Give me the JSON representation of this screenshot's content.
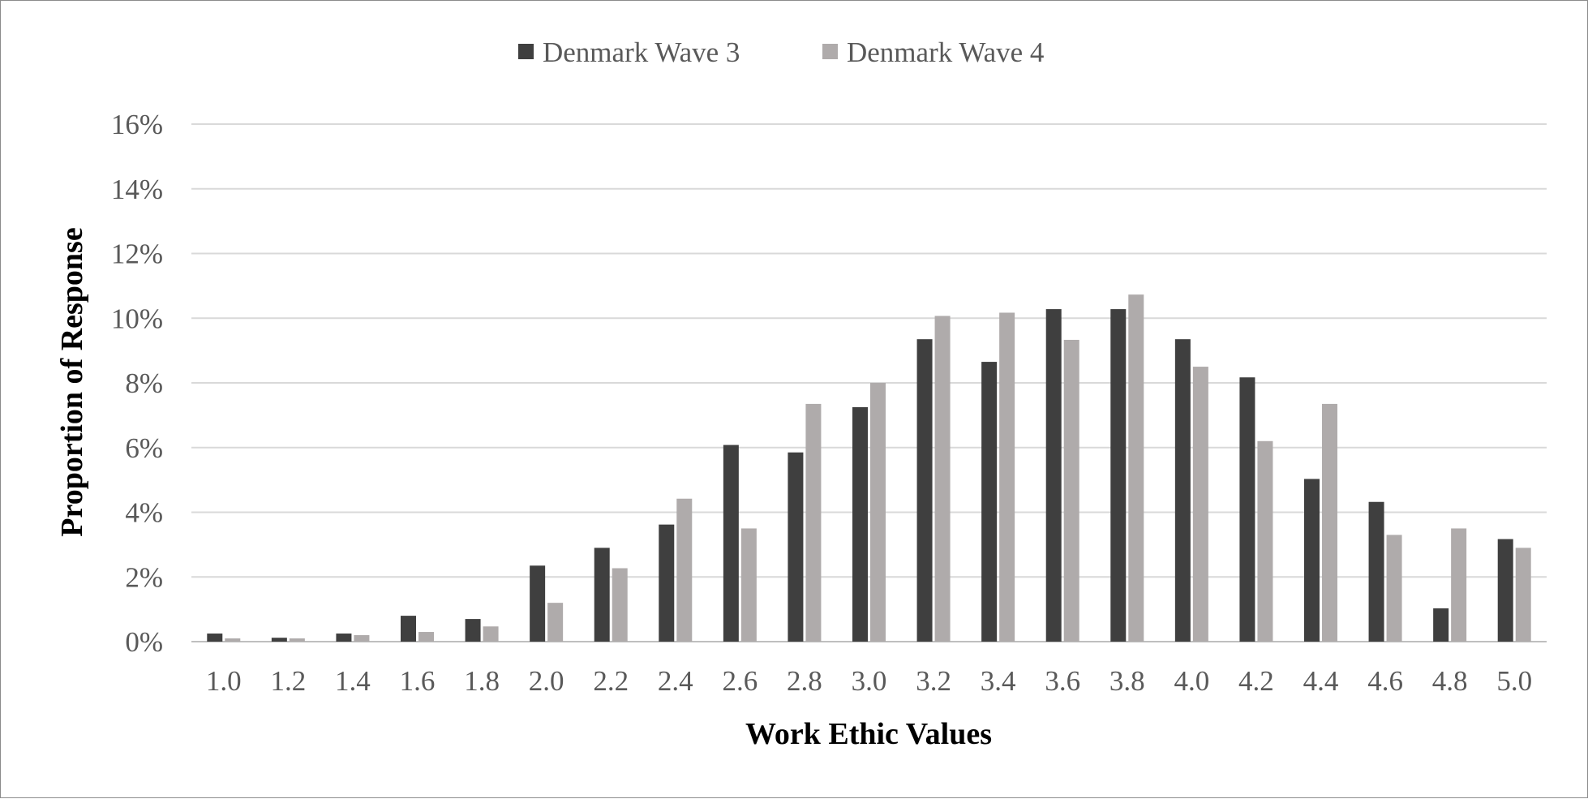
{
  "chart_data": {
    "type": "bar",
    "title": "",
    "xlabel": "Work Ethic Values",
    "ylabel": "Proportion of Response",
    "ylim": [
      0,
      16
    ],
    "yticks": [
      0,
      2,
      4,
      6,
      8,
      10,
      12,
      14,
      16
    ],
    "ytick_labels": [
      "0%",
      "2%",
      "4%",
      "6%",
      "8%",
      "10%",
      "12%",
      "14%",
      "16%"
    ],
    "y_unit": "%",
    "grid": "horizontal",
    "legend_position": "top",
    "categories": [
      "1.0",
      "1.2",
      "1.4",
      "1.6",
      "1.8",
      "2.0",
      "2.2",
      "2.4",
      "2.6",
      "2.8",
      "3.0",
      "3.2",
      "3.4",
      "3.6",
      "3.8",
      "4.0",
      "4.2",
      "4.4",
      "4.6",
      "4.8",
      "5.0"
    ],
    "series": [
      {
        "name": "Denmark Wave 3",
        "color": "#3f3f3f",
        "values": [
          0.25,
          0.12,
          0.25,
          0.8,
          0.7,
          2.35,
          2.9,
          3.62,
          6.08,
          5.85,
          7.25,
          9.35,
          8.65,
          10.28,
          10.28,
          9.35,
          8.17,
          5.03,
          4.32,
          1.03,
          3.17
        ]
      },
      {
        "name": "Denmark Wave 4",
        "color": "#afabab",
        "values": [
          0.1,
          0.1,
          0.2,
          0.3,
          0.47,
          1.2,
          2.27,
          4.42,
          3.5,
          7.35,
          8.0,
          10.07,
          10.17,
          9.33,
          10.73,
          8.5,
          6.2,
          7.35,
          3.3,
          3.5,
          2.9
        ]
      }
    ]
  }
}
